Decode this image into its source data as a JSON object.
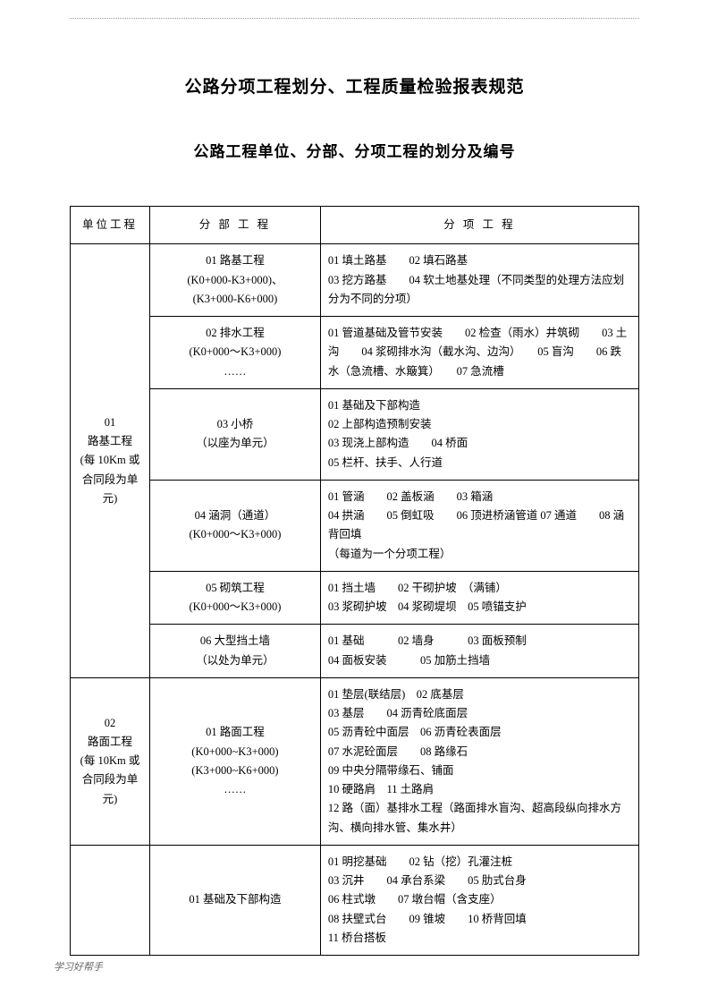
{
  "titles": {
    "main": "公路分项工程划分、工程质量检验报表规范",
    "sub": "公路工程单位、分部、分项工程的划分及编号"
  },
  "headers": {
    "unit": "单位工程",
    "division": "分 部 工 程",
    "item": "分 项 工 程"
  },
  "rows": [
    {
      "unit": "01\n路基工程\n(每 10Km 或合同段为单元)",
      "unit_rowspan": 6,
      "division": "01 路基工程\n(K0+000-K3+000)、\n(K3+000-K6+000)",
      "item": "01 填土路基　　02 填石路基\n03 挖方路基　　04 软土地基处理（不同类型的处理方法应划分为不同的分项）"
    },
    {
      "division": "02 排水工程\n(K0+000～K3+000)\n……",
      "item": "01 管道基础及管节安装　　02 检查（雨水）井筑砌　　03 土沟　　04 浆砌排水沟（截水沟、边沟）　　05 盲沟　　06 跌水（急流槽、水簸箕）　　07 急流槽"
    },
    {
      "division": "03 小桥\n（以座为单元）",
      "item": "01 基础及下部构造\n02 上部构造预制安装\n03 现浇上部构造　　04 桥面\n05 栏杆、扶手、人行道"
    },
    {
      "division": "04 涵洞（通道）\n(K0+000～K3+000)",
      "item": "01 管涵　　02 盖板涵　　03 箱涵\n04 拱涵　　05 倒虹吸　　06 顶进桥涵管道 07 通道　　08 涵背回填\n（每道为一个分项工程）"
    },
    {
      "division": "05 砌筑工程\n(K0+000～K3+000)",
      "item": "01 挡土墙　　02 干砌护坡　（满铺）\n03 浆砌护坡　04 浆砌堤坝　05 喷锚支护"
    },
    {
      "division": "06 大型挡土墙\n（以处为单元）",
      "item": "01 基础　　　02 墙身　　　03 面板预制\n04 面板安装　　　05 加筋土挡墙"
    },
    {
      "unit": "02\n路面工程\n(每 10Km 或合同段为单元)",
      "unit_rowspan": 1,
      "division": "01 路面工程\n(K0+000~K3+000)\n(K3+000~K6+000)\n……",
      "item": "01 垫层(联结层)　02 底基层\n03 基层　　04 沥青砼底面层\n05 沥青砼中面层　06 沥青砼表面层\n07 水泥砼面层　　08 路缘石\n09 中央分隔带缘石、铺面\n10 硬路肩　11 土路肩\n12 路（面）基排水工程（路面排水盲沟、超高段纵向排水方沟、横向排水管、集水井）"
    },
    {
      "unit": "",
      "unit_rowspan": 1,
      "division": "01 基础及下部构造",
      "item": "01 明挖基础　　02 钻（挖）孔灌注桩\n03 沉井　　04 承台系梁　　05 肋式台身\n06 柱式墩　　07 墩台帽（含支座）\n08 扶壁式台　　09 锥坡　　10 桥背回填\n11 桥台搭板"
    }
  ],
  "footer": "学习好帮手"
}
